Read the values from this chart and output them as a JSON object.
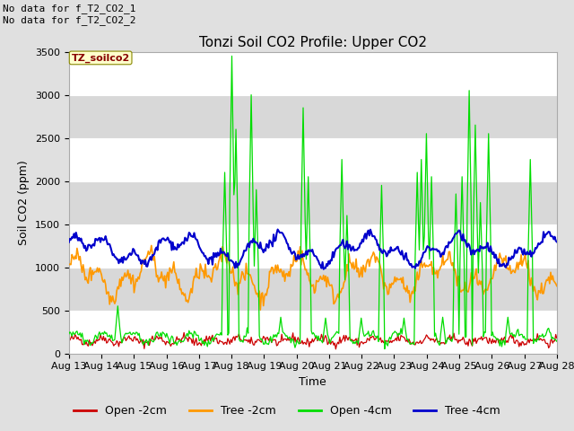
{
  "title": "Tonzi Soil CO2 Profile: Upper CO2",
  "xlabel": "Time",
  "ylabel": "Soil CO2 (ppm)",
  "ylim": [
    0,
    3500
  ],
  "yticks": [
    0,
    500,
    1000,
    1500,
    2000,
    2500,
    3000,
    3500
  ],
  "xtick_labels": [
    "Aug 13",
    "Aug 14",
    "Aug 15",
    "Aug 16",
    "Aug 17",
    "Aug 18",
    "Aug 19",
    "Aug 20",
    "Aug 21",
    "Aug 22",
    "Aug 23",
    "Aug 24",
    "Aug 25",
    "Aug 26",
    "Aug 27",
    "Aug 28"
  ],
  "colors": {
    "open_2cm": "#cc0000",
    "tree_2cm": "#ff9900",
    "open_4cm": "#00dd00",
    "tree_4cm": "#0000cc"
  },
  "legend_labels": [
    "Open -2cm",
    "Tree -2cm",
    "Open -4cm",
    "Tree -4cm"
  ],
  "annotations": [
    "No data for f_T2_CO2_1",
    "No data for f_T2_CO2_2"
  ],
  "inset_label": "TZ_soilco2",
  "background_color": "#e0e0e0",
  "plot_bg_color": "#ffffff",
  "grid_band_color": "#d8d8d8",
  "title_fontsize": 11,
  "axis_fontsize": 9,
  "tick_fontsize": 8,
  "legend_fontsize": 9,
  "annotation_fontsize": 8
}
